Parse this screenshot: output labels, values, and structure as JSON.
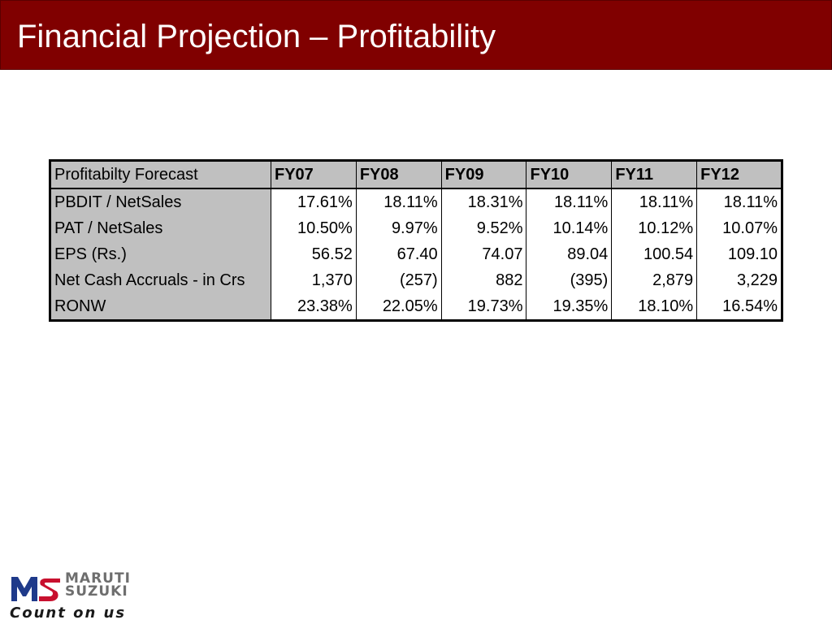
{
  "slide": {
    "title": "Financial Projection – Profitability"
  },
  "table": {
    "corner_label": "Profitabilty Forecast",
    "columns": [
      "FY07",
      "FY08",
      "FY09",
      "FY10",
      "FY11",
      "FY12"
    ],
    "rows": [
      {
        "label": "PBDIT / NetSales",
        "values": [
          "17.61%",
          "18.11%",
          "18.31%",
          "18.11%",
          "18.11%",
          "18.11%"
        ]
      },
      {
        "label": "PAT / NetSales",
        "values": [
          "10.50%",
          "9.97%",
          "9.52%",
          "10.14%",
          "10.12%",
          "10.07%"
        ]
      },
      {
        "label": "EPS (Rs.)",
        "values": [
          "56.52",
          "67.40",
          "74.07",
          "89.04",
          "100.54",
          "109.10"
        ]
      },
      {
        "label": "Net Cash Accruals - in Crs",
        "values": [
          "1,370",
          "(257)",
          "882",
          "(395)",
          "2,879",
          "3,229"
        ]
      },
      {
        "label": "RONW",
        "values": [
          "23.38%",
          "22.05%",
          "19.73%",
          "19.35%",
          "18.10%",
          "16.54%"
        ]
      }
    ]
  },
  "logo": {
    "brand_line_1": "MARUTI",
    "brand_line_2": "SUZUKI",
    "tagline": "Count on us",
    "colors": {
      "red": "#c8102e",
      "blue": "#1f3a8a",
      "grey": "#6e6e6e"
    }
  },
  "colors": {
    "title_bar": "#800000",
    "header_fill": "#c0c0c0"
  }
}
